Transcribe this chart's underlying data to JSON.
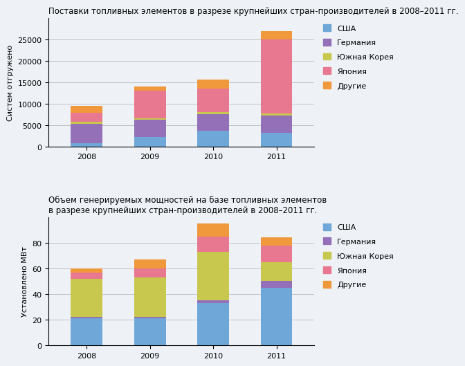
{
  "chart1": {
    "title": "Поставки топливных элементов в разрезе крупнейших стран-производителей в 2008–2011 гг.",
    "ylabel": "Систем отгружено",
    "years": [
      2008,
      2009,
      2010,
      2011
    ],
    "usa": [
      800,
      2200,
      3600,
      3200
    ],
    "germany": [
      4500,
      4000,
      4000,
      4000
    ],
    "s_korea": [
      500,
      300,
      500,
      500
    ],
    "japan": [
      2000,
      6500,
      5500,
      17300
    ],
    "others": [
      1700,
      1000,
      2000,
      2000
    ],
    "ylim": [
      0,
      30000
    ],
    "yticks": [
      0,
      5000,
      10000,
      15000,
      20000,
      25000
    ]
  },
  "chart2": {
    "title": "Объем генерируемых мощностей на базе топливных элементов\nв разрезе крупнейших стран-производителей в 2008–2011 гг.",
    "ylabel": "Установлено МВт",
    "years": [
      2008,
      2009,
      2010,
      2011
    ],
    "usa": [
      21,
      21,
      33,
      45
    ],
    "germany": [
      1,
      1,
      2,
      5
    ],
    "s_korea": [
      30,
      31,
      38,
      15
    ],
    "japan": [
      5,
      7,
      12,
      13
    ],
    "others": [
      3,
      7,
      10,
      6
    ],
    "ylim": [
      0,
      100
    ],
    "yticks": [
      0,
      20,
      40,
      60,
      80
    ]
  },
  "colors": {
    "usa": "#6fa8d8",
    "germany": "#9370b8",
    "s_korea": "#c8c84e",
    "japan": "#e87890",
    "others": "#f0983c"
  },
  "legend_labels": {
    "usa": "США",
    "germany": "Германия",
    "s_korea": "Южная Корея",
    "japan": "Япония",
    "others": "Другие"
  },
  "background_color": "#eef2f7",
  "bar_width": 0.5,
  "title_fontsize": 8.5,
  "label_fontsize": 8,
  "tick_fontsize": 8,
  "legend_fontsize": 8
}
